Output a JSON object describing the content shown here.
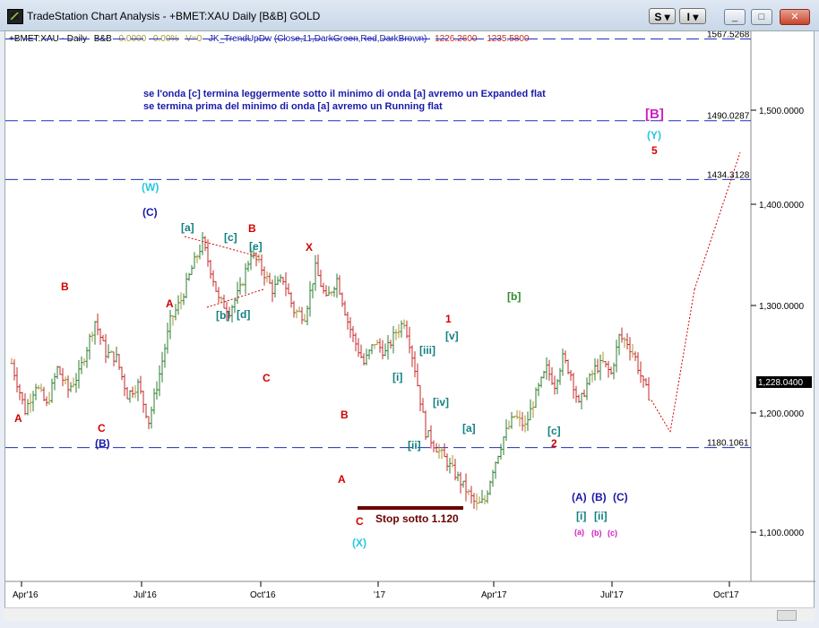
{
  "window": {
    "title": "TradeStation Chart Analysis - +BMET:XAU Daily [B&B] GOLD",
    "btn_s": "S",
    "btn_i": "I",
    "minimize": "_",
    "maximize": "□",
    "close": "✕"
  },
  "status_line": {
    "symbol": "+BMET:XAU - Daily",
    "indicator1": "B&B",
    "val1": "0.0000",
    "val2": "0.00%",
    "v": "V=0",
    "study": "JK_TrendUpDw (Close,11,DarkGreen,Red,DarkBrown)",
    "level1": "1226.2600",
    "level2": "1235.5800"
  },
  "annotations": {
    "note_line1": "se l'onda [c] termina leggermente sotto il minimo di onda [a] avremo un Expanded flat",
    "note_line2": "se termina prima del minimo di onda [a] avremo un  Running flat",
    "stop_label": "Stop sotto 1.120"
  },
  "price_axis": {
    "ticks": [
      "1,500.0000",
      "1,400.0000",
      "1,300.0000",
      "1,200.0000",
      "1,100.0000"
    ],
    "last_price": "1,228.0400"
  },
  "hlines": [
    {
      "label": "1567.5268",
      "value": 1567.5268
    },
    {
      "label": "1490.0287",
      "value": 1490.0287
    },
    {
      "label": "1434.3128",
      "value": 1434.3128
    },
    {
      "label": "1180.1061",
      "value": 1180.1061
    }
  ],
  "date_axis": [
    "Apr'16",
    "Jul'16",
    "Oct'16",
    "'17",
    "Apr'17",
    "Jul'17",
    "Oct'17"
  ],
  "wave_labels": [
    {
      "text": "A",
      "color": "#d40000"
    },
    {
      "text": "B",
      "color": "#d40000"
    },
    {
      "text": "C",
      "color": "#d40000"
    },
    {
      "text": "(B)",
      "color": "#1a1aa8"
    },
    {
      "text": "(W)",
      "color": "#25c8e0"
    },
    {
      "text": "(C)",
      "color": "#1a1aa8"
    },
    {
      "text": "A",
      "color": "#d40000"
    },
    {
      "text": "[a]",
      "color": "#128080"
    },
    {
      "text": "[b]",
      "color": "#128080"
    },
    {
      "text": "[c]",
      "color": "#128080"
    },
    {
      "text": "[d]",
      "color": "#128080"
    },
    {
      "text": "[e]",
      "color": "#128080"
    },
    {
      "text": "B",
      "color": "#d40000"
    },
    {
      "text": "C",
      "color": "#d40000"
    },
    {
      "text": "X",
      "color": "#d40000"
    },
    {
      "text": "B",
      "color": "#d40000"
    },
    {
      "text": "A",
      "color": "#d40000"
    },
    {
      "text": "C",
      "color": "#d40000"
    },
    {
      "text": "(X)",
      "color": "#25c8e0"
    },
    {
      "text": "[i]",
      "color": "#128080"
    },
    {
      "text": "[ii]",
      "color": "#128080"
    },
    {
      "text": "[iii]",
      "color": "#128080"
    },
    {
      "text": "[iv]",
      "color": "#128080"
    },
    {
      "text": "[v]",
      "color": "#128080"
    },
    {
      "text": "1",
      "color": "#d40000"
    },
    {
      "text": "[a]",
      "color": "#128080"
    },
    {
      "text": "[b]",
      "color": "#2e8b2e"
    },
    {
      "text": "[c]",
      "color": "#128080"
    },
    {
      "text": "2",
      "color": "#d40000"
    },
    {
      "text": "[B]",
      "color": "#d020c0"
    },
    {
      "text": "(Y)",
      "color": "#25c8e0"
    },
    {
      "text": "5",
      "color": "#d40000"
    },
    {
      "text": "(A)",
      "color": "#1a1aa8"
    },
    {
      "text": "(B)",
      "color": "#1a1aa8"
    },
    {
      "text": "(C)",
      "color": "#1a1aa8"
    },
    {
      "text": "[i]",
      "color": "#128080"
    },
    {
      "text": "[ii]",
      "color": "#128080"
    },
    {
      "text": "(a)",
      "color": "#d020c0"
    },
    {
      "text": "(b)",
      "color": "#d020c0"
    },
    {
      "text": "(c)",
      "color": "#d020c0"
    }
  ],
  "chart_data": {
    "type": "bar",
    "price_range": [
      1040,
      1600
    ],
    "colors": {
      "up": "#2e7d32",
      "down": "#c62828",
      "neutral": "#a89432",
      "hline": "#1f2fbf",
      "projection": "#d40000",
      "stop_bar": "#6b0000"
    },
    "path_points": [
      [
        1,
        1260
      ],
      [
        6,
        1215
      ],
      [
        10,
        1240
      ],
      [
        14,
        1220
      ],
      [
        18,
        1255
      ],
      [
        22,
        1235
      ],
      [
        26,
        1250
      ],
      [
        32,
        1300
      ],
      [
        36,
        1270
      ],
      [
        40,
        1265
      ],
      [
        44,
        1230
      ],
      [
        48,
        1240
      ],
      [
        52,
        1205
      ],
      [
        56,
        1250
      ],
      [
        60,
        1300
      ],
      [
        64,
        1320
      ],
      [
        68,
        1350
      ],
      [
        72,
        1375
      ],
      [
        76,
        1340
      ],
      [
        78,
        1320
      ],
      [
        82,
        1310
      ],
      [
        86,
        1330
      ],
      [
        90,
        1365
      ],
      [
        94,
        1350
      ],
      [
        98,
        1330
      ],
      [
        102,
        1340
      ],
      [
        106,
        1310
      ],
      [
        110,
        1305
      ],
      [
        114,
        1350
      ],
      [
        118,
        1320
      ],
      [
        122,
        1340
      ],
      [
        126,
        1300
      ],
      [
        128,
        1285
      ],
      [
        132,
        1260
      ],
      [
        136,
        1280
      ],
      [
        140,
        1270
      ],
      [
        144,
        1290
      ],
      [
        147,
        1300
      ],
      [
        149,
        1280
      ],
      [
        151,
        1255
      ],
      [
        155,
        1195
      ],
      [
        159,
        1180
      ],
      [
        162,
        1170
      ],
      [
        166,
        1155
      ],
      [
        170,
        1140
      ],
      [
        174,
        1125
      ],
      [
        177,
        1130
      ],
      [
        180,
        1160
      ],
      [
        184,
        1190
      ],
      [
        188,
        1210
      ],
      [
        192,
        1200
      ],
      [
        196,
        1230
      ],
      [
        200,
        1255
      ],
      [
        203,
        1240
      ],
      [
        206,
        1265
      ],
      [
        209,
        1250
      ],
      [
        212,
        1220
      ],
      [
        215,
        1240
      ],
      [
        218,
        1255
      ],
      [
        221,
        1260
      ],
      [
        224,
        1250
      ],
      [
        227,
        1285
      ],
      [
        230,
        1280
      ],
      [
        233,
        1265
      ],
      [
        236,
        1240
      ],
      [
        239,
        1225
      ]
    ],
    "projection": [
      [
        239,
        1225
      ],
      [
        246,
        1195
      ],
      [
        255,
        1330
      ],
      [
        272,
        1460
      ]
    ]
  }
}
